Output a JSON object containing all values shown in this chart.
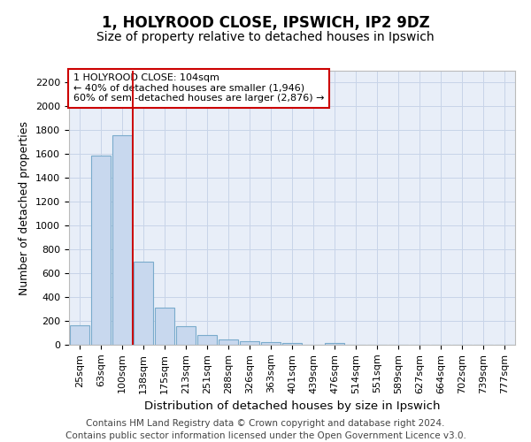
{
  "title": "1, HOLYROOD CLOSE, IPSWICH, IP2 9DZ",
  "subtitle": "Size of property relative to detached houses in Ipswich",
  "xlabel": "Distribution of detached houses by size in Ipswich",
  "ylabel": "Number of detached properties",
  "categories": [
    "25sqm",
    "63sqm",
    "100sqm",
    "138sqm",
    "175sqm",
    "213sqm",
    "251sqm",
    "288sqm",
    "326sqm",
    "363sqm",
    "401sqm",
    "439sqm",
    "476sqm",
    "514sqm",
    "551sqm",
    "589sqm",
    "627sqm",
    "664sqm",
    "702sqm",
    "739sqm",
    "777sqm"
  ],
  "values": [
    160,
    1590,
    1755,
    700,
    315,
    155,
    80,
    48,
    30,
    20,
    12,
    0,
    15,
    0,
    0,
    0,
    0,
    0,
    0,
    0,
    0
  ],
  "bar_color": "#c8d8ee",
  "bar_edge_color": "#7aabcc",
  "vline_x_index": 2.5,
  "vline_label": "1 HOLYROOD CLOSE: 104sqm",
  "annotation_line1": "← 40% of detached houses are smaller (1,946)",
  "annotation_line2": "60% of semi-detached houses are larger (2,876) →",
  "annotation_box_color": "#ffffff",
  "annotation_box_edge": "#cc0000",
  "vline_color": "#cc0000",
  "ylim": [
    0,
    2300
  ],
  "yticks": [
    0,
    200,
    400,
    600,
    800,
    1000,
    1200,
    1400,
    1600,
    1800,
    2000,
    2200
  ],
  "grid_color": "#c8d4e8",
  "background_color": "#e8eef8",
  "footer_line1": "Contains HM Land Registry data © Crown copyright and database right 2024.",
  "footer_line2": "Contains public sector information licensed under the Open Government Licence v3.0.",
  "title_fontsize": 12,
  "subtitle_fontsize": 10,
  "tick_fontsize": 8,
  "footer_fontsize": 7.5
}
